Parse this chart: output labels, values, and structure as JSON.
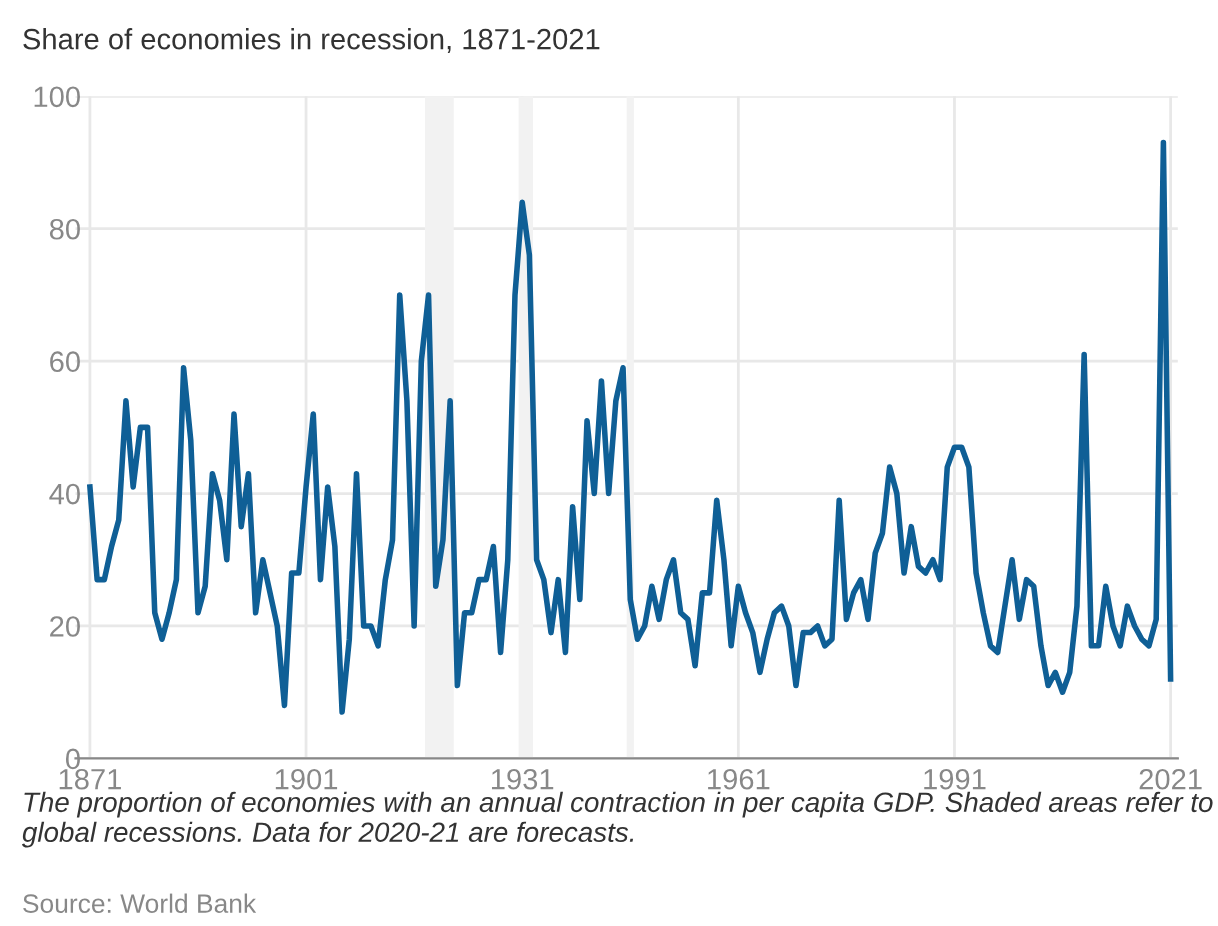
{
  "chart_data": {
    "type": "line",
    "title": "Share of economies in recession, 1871-2021",
    "x": [
      1871,
      1872,
      1873,
      1874,
      1875,
      1876,
      1877,
      1878,
      1879,
      1880,
      1881,
      1882,
      1883,
      1884,
      1885,
      1886,
      1887,
      1888,
      1889,
      1890,
      1891,
      1892,
      1893,
      1894,
      1895,
      1896,
      1897,
      1898,
      1899,
      1900,
      1901,
      1902,
      1903,
      1904,
      1905,
      1906,
      1907,
      1908,
      1909,
      1910,
      1911,
      1912,
      1913,
      1914,
      1915,
      1916,
      1917,
      1918,
      1919,
      1920,
      1921,
      1922,
      1923,
      1924,
      1925,
      1926,
      1927,
      1928,
      1929,
      1930,
      1931,
      1932,
      1933,
      1934,
      1935,
      1936,
      1937,
      1938,
      1939,
      1940,
      1941,
      1942,
      1943,
      1944,
      1945,
      1946,
      1947,
      1948,
      1949,
      1950,
      1951,
      1952,
      1953,
      1954,
      1955,
      1956,
      1957,
      1958,
      1959,
      1960,
      1961,
      1962,
      1963,
      1964,
      1965,
      1966,
      1967,
      1968,
      1969,
      1970,
      1971,
      1972,
      1973,
      1974,
      1975,
      1976,
      1977,
      1978,
      1979,
      1980,
      1981,
      1982,
      1983,
      1984,
      1985,
      1986,
      1987,
      1988,
      1989,
      1990,
      1991,
      1992,
      1993,
      1994,
      1995,
      1996,
      1997,
      1998,
      1999,
      2000,
      2001,
      2002,
      2003,
      2004,
      2005,
      2006,
      2007,
      2008,
      2009,
      2010,
      2011,
      2012,
      2013,
      2014,
      2015,
      2016,
      2017,
      2018,
      2019,
      2020,
      2021
    ],
    "series": [
      {
        "color": "#0f5f96",
        "values": [
          41,
          27,
          27,
          32,
          36,
          54,
          41,
          50,
          50,
          22,
          18,
          22,
          27,
          59,
          48,
          22,
          26,
          43,
          39,
          30,
          52,
          35,
          43,
          22,
          30,
          25,
          20,
          8,
          28,
          28,
          41,
          52,
          27,
          41,
          32,
          7,
          18,
          43,
          20,
          20,
          17,
          27,
          33,
          70,
          54,
          20,
          60,
          70,
          26,
          33,
          54,
          11,
          22,
          22,
          27,
          27,
          32,
          16,
          30,
          70,
          84,
          76,
          30,
          27,
          19,
          27,
          16,
          38,
          24,
          51,
          40,
          57,
          40,
          54,
          59,
          24,
          18,
          20,
          26,
          21,
          27,
          30,
          22,
          21,
          14,
          25,
          25,
          39,
          30,
          17,
          26,
          22,
          19,
          13,
          18,
          22,
          23,
          20,
          11,
          19,
          19,
          20,
          17,
          18,
          39,
          21,
          25,
          27,
          21,
          31,
          34,
          44,
          40,
          28,
          35,
          29,
          28,
          30,
          27,
          44,
          47,
          47,
          44,
          28,
          22,
          17,
          16,
          23,
          30,
          21,
          27,
          26,
          17,
          11,
          13,
          10,
          13,
          23,
          61,
          17,
          17,
          26,
          20,
          17,
          23,
          20,
          18,
          17,
          21,
          93,
          12
        ]
      }
    ],
    "xlim": [
      1869,
      2022
    ],
    "ylim": [
      0,
      100
    ],
    "xticks": [
      1871,
      1901,
      1931,
      1961,
      1991,
      2021
    ],
    "yticks": [
      0,
      20,
      40,
      60,
      80,
      100
    ],
    "grid": true,
    "bands": [
      {
        "axis": "x",
        "from": 1917.5,
        "to": 1921.5,
        "color": "#f2f2f2"
      },
      {
        "axis": "x",
        "from": 1930.5,
        "to": 1932.5,
        "color": "#f2f2f2"
      },
      {
        "axis": "x",
        "from": 1945.5,
        "to": 1946.5,
        "color": "#f2f2f2"
      }
    ],
    "annotations": [
      "The proportion of economies with an annual contraction in per capita GDP. Shaded areas refer to global recessions. Data for 2020-21 are forecasts.",
      "Source: World Bank"
    ]
  }
}
